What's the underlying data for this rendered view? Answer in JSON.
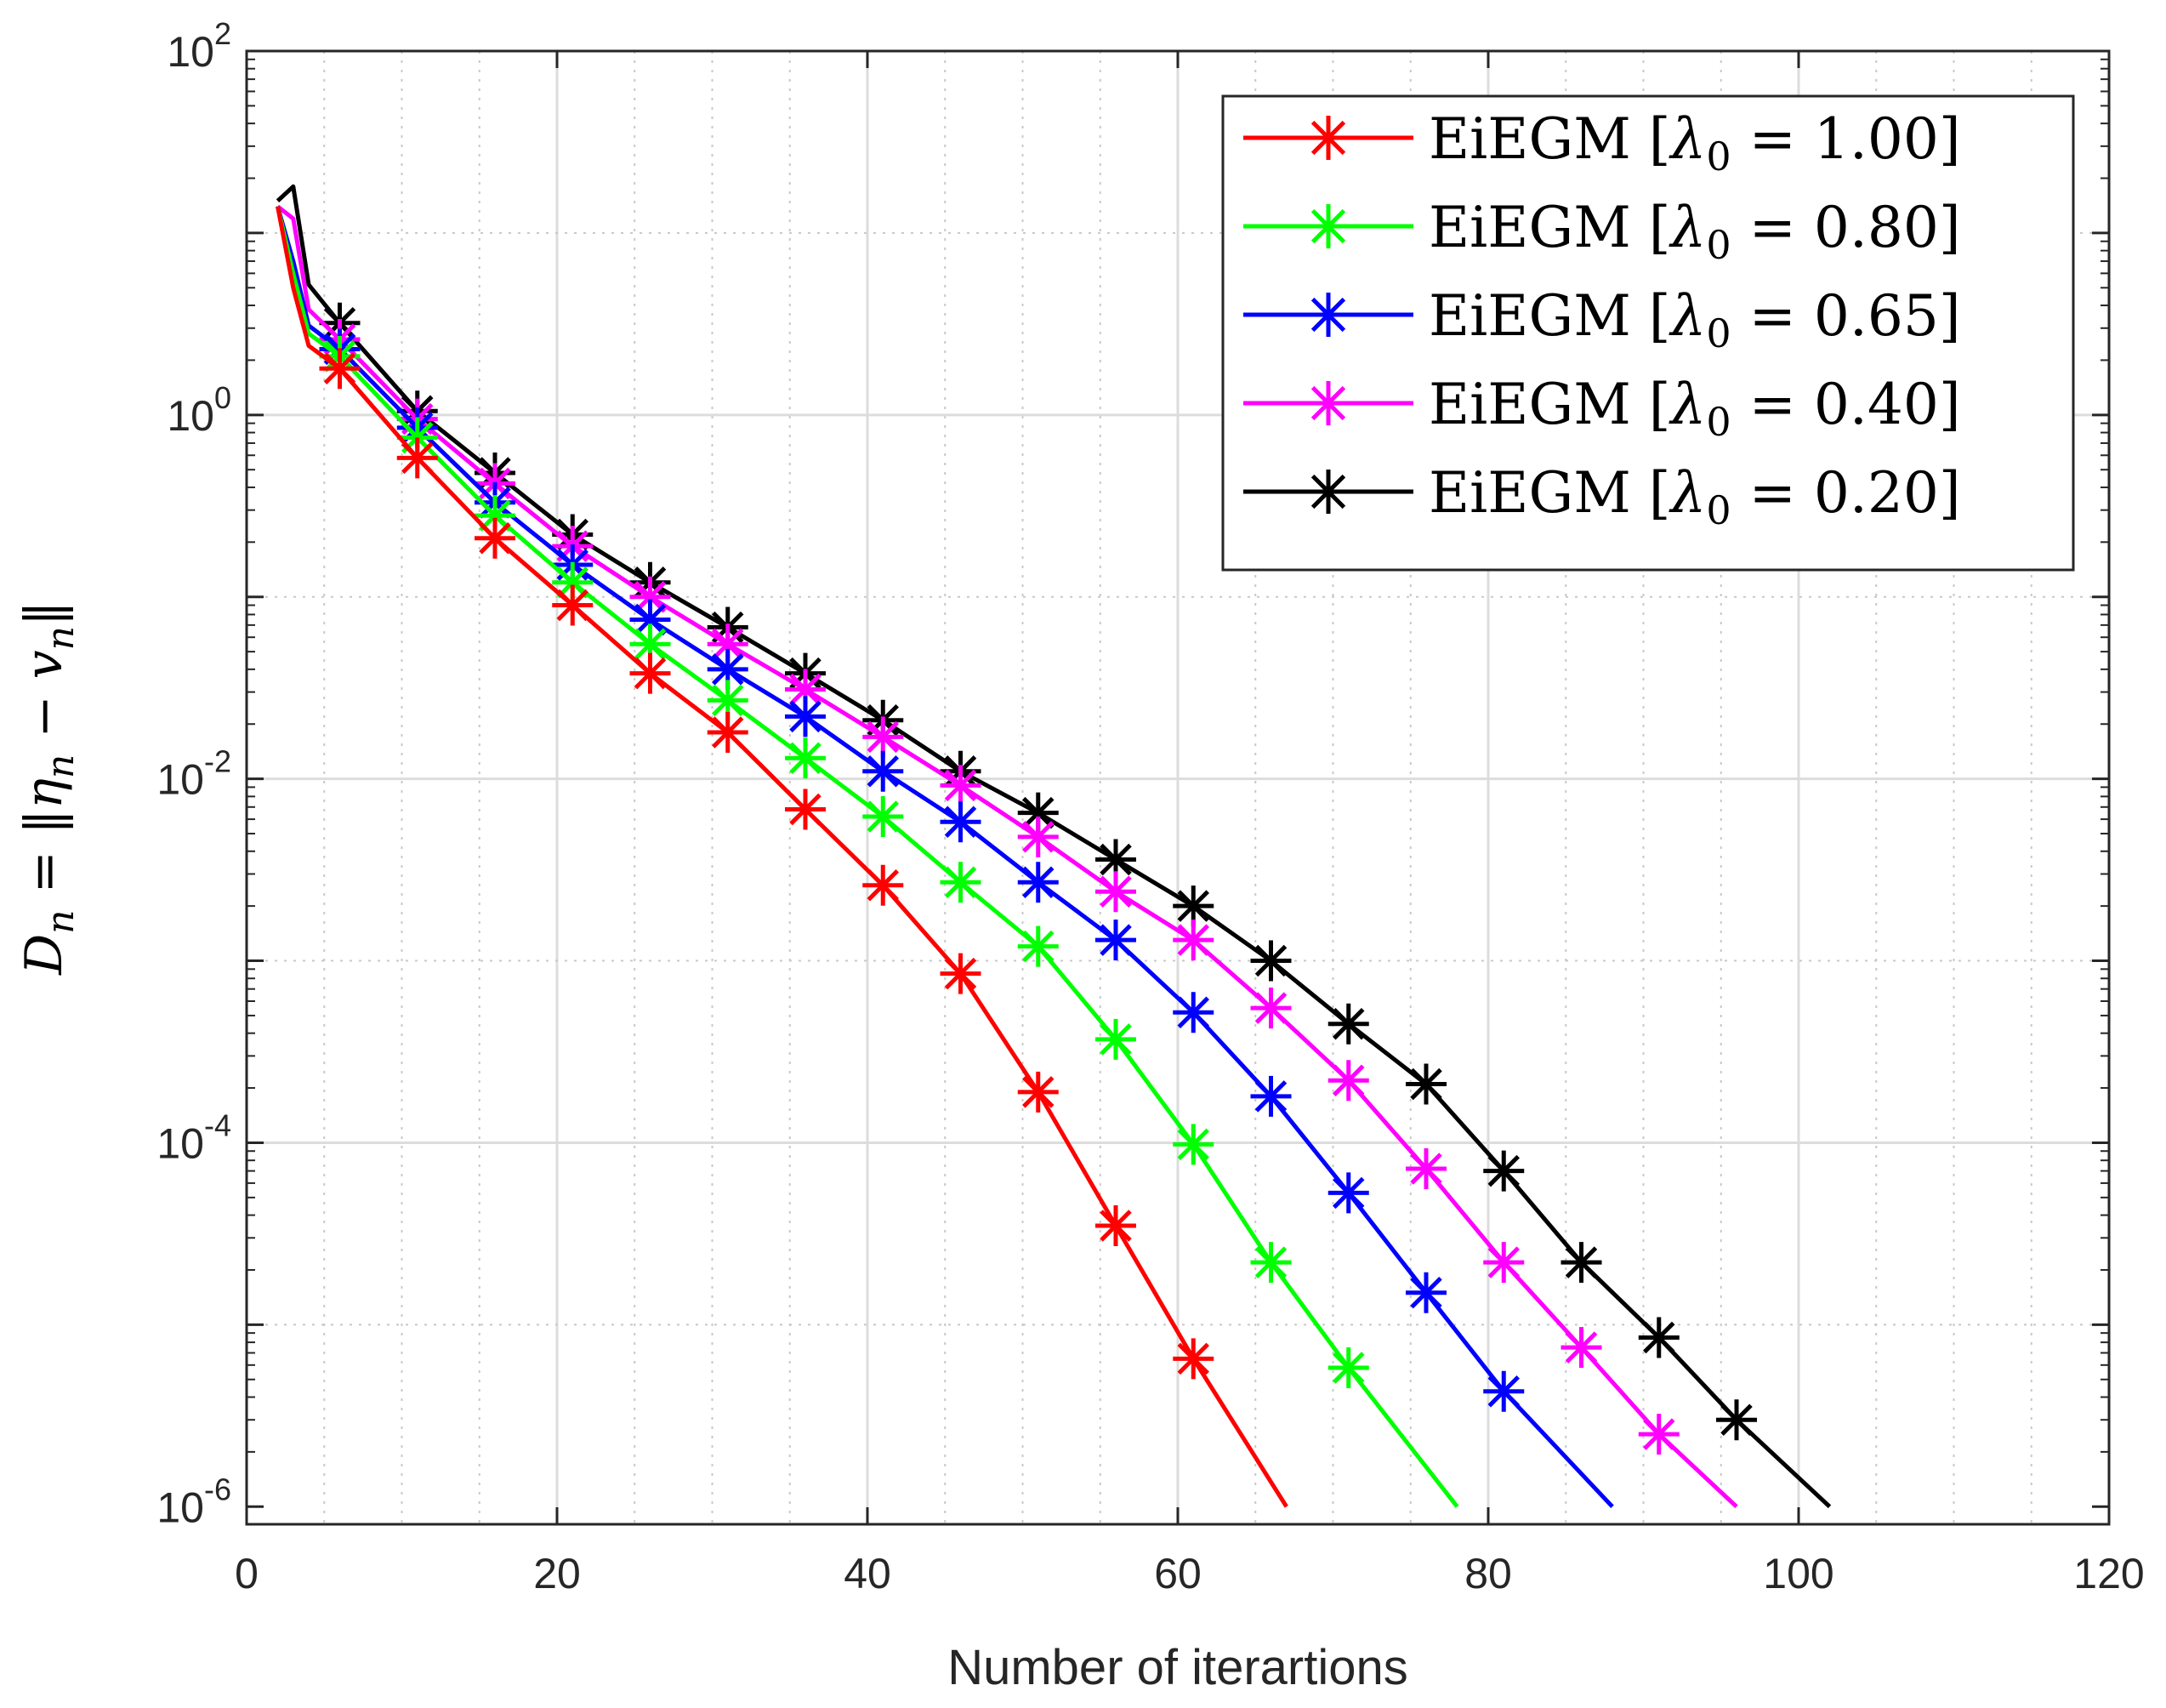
{
  "chart_data": {
    "type": "line",
    "yscale": "log",
    "title": "",
    "xlabel": "Number of iterartions",
    "ylabel": "D_n = ||η_n − v_n||",
    "xlim": [
      0,
      120
    ],
    "ylim": [
      8e-07,
      100
    ],
    "grid": true,
    "legend_position": "top-right",
    "x_ticks": [
      "0",
      "20",
      "40",
      "60",
      "80",
      "100",
      "120"
    ],
    "y_ticks": [
      {
        "base": "10",
        "exp": "2",
        "value": 100
      },
      {
        "base": "10",
        "exp": "0",
        "value": 1
      },
      {
        "base": "10",
        "exp": "-2",
        "value": 0.01
      },
      {
        "base": "10",
        "exp": "-4",
        "value": 0.0001
      },
      {
        "base": "10",
        "exp": "-6",
        "value": 1e-06
      }
    ],
    "series": [
      {
        "name": "EiEGM [λ0 = 1.00]",
        "color": "#ff0000",
        "marker": "asterisk",
        "x": [
          2,
          3,
          4,
          6,
          11,
          16,
          21,
          26,
          31,
          36,
          41,
          46,
          51,
          56,
          61,
          67
        ],
        "y": [
          14,
          5,
          2.4,
          1.8,
          0.58,
          0.21,
          0.09,
          0.038,
          0.018,
          0.0068,
          0.0026,
          0.00085,
          0.00019,
          3.5e-05,
          6.5e-06,
          1e-06
        ],
        "marker_x": [
          6,
          11,
          16,
          21,
          26,
          31,
          36,
          41,
          46,
          51,
          56,
          61
        ]
      },
      {
        "name": "EiEGM [λ0 = 0.80]",
        "color": "#00ff00",
        "marker": "asterisk",
        "x": [
          2,
          3,
          4,
          6,
          11,
          16,
          21,
          26,
          31,
          36,
          41,
          46,
          51,
          56,
          61,
          66,
          71,
          78
        ],
        "y": [
          14,
          6,
          2.8,
          2.1,
          0.75,
          0.28,
          0.12,
          0.055,
          0.027,
          0.013,
          0.0062,
          0.0027,
          0.0012,
          0.00037,
          9.8e-05,
          2.2e-05,
          5.8e-06,
          1e-06
        ],
        "marker_x": [
          6,
          11,
          16,
          21,
          26,
          31,
          36,
          41,
          46,
          51,
          56,
          61,
          66,
          71
        ]
      },
      {
        "name": "EiEGM [λ0 = 0.65]",
        "color": "#0000ff",
        "marker": "asterisk",
        "x": [
          2,
          3,
          4,
          6,
          11,
          16,
          21,
          26,
          31,
          36,
          41,
          46,
          51,
          56,
          61,
          66,
          71,
          76,
          81,
          88
        ],
        "y": [
          14,
          7,
          3.1,
          2.3,
          0.85,
          0.33,
          0.15,
          0.075,
          0.04,
          0.022,
          0.011,
          0.0058,
          0.0027,
          0.0013,
          0.00052,
          0.00018,
          5.3e-05,
          1.5e-05,
          4.3e-06,
          1e-06
        ],
        "marker_x": [
          6,
          11,
          16,
          21,
          26,
          31,
          36,
          41,
          46,
          51,
          56,
          61,
          66,
          71,
          76,
          81
        ]
      },
      {
        "name": "EiEGM [λ0 = 0.40]",
        "color": "#ff00ff",
        "marker": "asterisk",
        "x": [
          2,
          3,
          4,
          6,
          11,
          16,
          21,
          26,
          31,
          36,
          41,
          46,
          51,
          56,
          61,
          66,
          71,
          76,
          81,
          86,
          91,
          96
        ],
        "y": [
          14,
          12,
          3.8,
          2.6,
          0.95,
          0.42,
          0.19,
          0.1,
          0.055,
          0.031,
          0.017,
          0.0092,
          0.0048,
          0.0024,
          0.0013,
          0.00055,
          0.00022,
          7.2e-05,
          2.2e-05,
          7.5e-06,
          2.5e-06,
          1e-06
        ],
        "marker_x": [
          6,
          11,
          16,
          21,
          26,
          31,
          36,
          41,
          46,
          51,
          56,
          61,
          66,
          71,
          76,
          81,
          86,
          91
        ]
      },
      {
        "name": "EiEGM [λ0 = 0.20]",
        "color": "#000000",
        "marker": "asterisk",
        "x": [
          2,
          3,
          4,
          6,
          11,
          16,
          21,
          26,
          31,
          36,
          41,
          46,
          51,
          56,
          61,
          66,
          71,
          76,
          81,
          86,
          91,
          96,
          102
        ],
        "y": [
          15,
          18,
          5.2,
          3.2,
          1.05,
          0.48,
          0.22,
          0.12,
          0.068,
          0.038,
          0.021,
          0.011,
          0.0065,
          0.0036,
          0.002,
          0.001,
          0.00045,
          0.00021,
          7e-05,
          2.2e-05,
          8.5e-06,
          3e-06,
          1e-06
        ],
        "marker_x": [
          6,
          11,
          16,
          21,
          26,
          31,
          36,
          41,
          46,
          51,
          56,
          61,
          66,
          71,
          76,
          81,
          86,
          91,
          96
        ]
      }
    ],
    "legend": [
      {
        "label": "EiEGM [",
        "param": "λ",
        "sub": "0",
        "eq": " = 1.00]"
      },
      {
        "label": "EiEGM [",
        "param": "λ",
        "sub": "0",
        "eq": " = 0.80]"
      },
      {
        "label": "EiEGM [",
        "param": "λ",
        "sub": "0",
        "eq": " = 0.65]"
      },
      {
        "label": "EiEGM [",
        "param": "λ",
        "sub": "0",
        "eq": " = 0.40]"
      },
      {
        "label": "EiEGM [",
        "param": "λ",
        "sub": "0",
        "eq": " = 0.20]"
      }
    ]
  }
}
